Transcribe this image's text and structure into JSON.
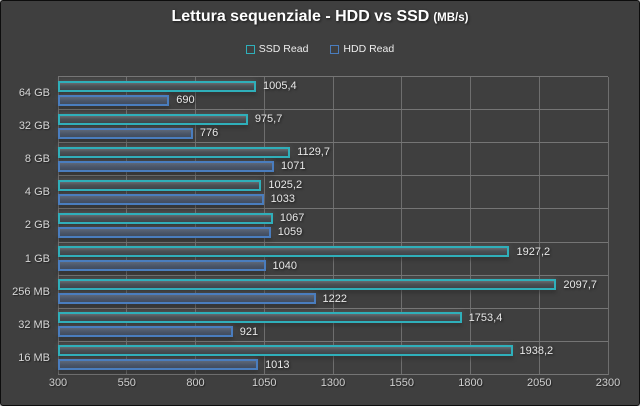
{
  "header": {
    "title_main": "Lettura sequenziale - HDD vs SSD",
    "title_unit": "(MB/s)"
  },
  "colors": {
    "background": "#3F3F3F",
    "grid": "#6E6E6E",
    "ssd_accent": "#2FAFBA",
    "hdd_accent": "#4A7DBE",
    "text": "#DADADA"
  },
  "chart_data": {
    "type": "bar",
    "orientation": "horizontal",
    "title": "Lettura sequenziale - HDD vs SSD (MB/s)",
    "categories": [
      "64 GB",
      "32 GB",
      "8 GB",
      "4 GB",
      "2 GB",
      "1 GB",
      "256 MB",
      "32 MB",
      "16 MB"
    ],
    "series": [
      {
        "name": "SSD Read",
        "color": "#2FAFBA",
        "values": [
          1005.4,
          975.7,
          1129.7,
          1025.2,
          1067,
          1927.2,
          2097.7,
          1753.4,
          1938.2
        ],
        "labels": [
          "1005,4",
          "975,7",
          "1129,7",
          "1025,2",
          "1067",
          "1927,2",
          "2097,7",
          "1753,4",
          "1938,2"
        ]
      },
      {
        "name": "HDD Read",
        "color": "#4A7DBE",
        "values": [
          690,
          776,
          1071,
          1033,
          1059,
          1040,
          1222,
          921,
          1013
        ],
        "labels": [
          "690",
          "776",
          "1071",
          "1033",
          "1059",
          "1040",
          "1222",
          "921",
          "1013"
        ]
      }
    ],
    "xlabel": "",
    "ylabel": "",
    "xlim": [
      300,
      2300
    ],
    "xticks": [
      300,
      550,
      800,
      1050,
      1300,
      1550,
      1800,
      2050,
      2300
    ],
    "grid": true,
    "legend_position": "top"
  }
}
